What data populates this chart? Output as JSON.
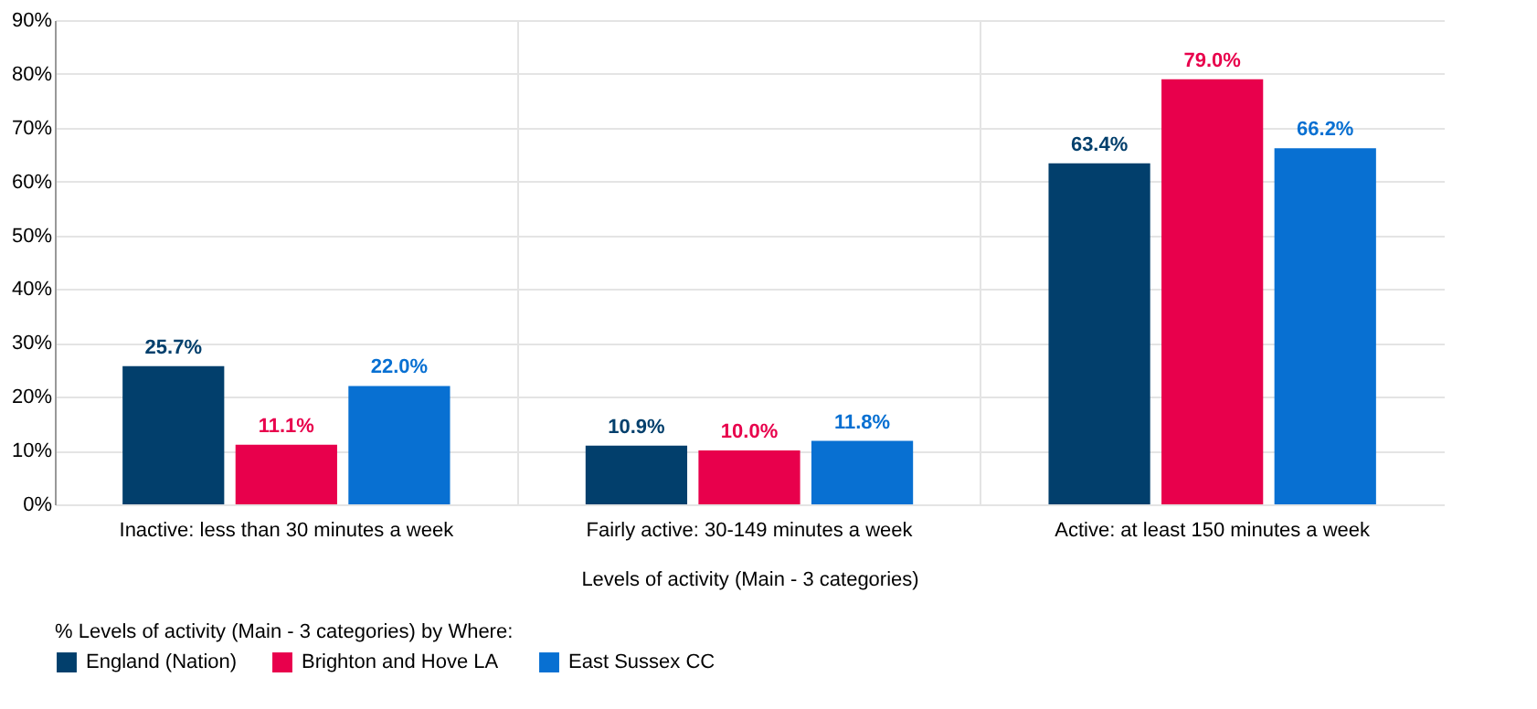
{
  "chart_data": {
    "type": "bar",
    "xlabel": "Levels of activity (Main - 3 categories)",
    "legend_title": "% Levels of activity (Main - 3 categories) by Where:",
    "categories": [
      "Inactive: less than 30 minutes a week",
      "Fairly active: 30-149 minutes a week",
      "Active: at least 150 minutes a week"
    ],
    "series": [
      {
        "name": "England (Nation)",
        "color": "#023f6c",
        "values": [
          25.7,
          10.9,
          63.4
        ],
        "value_labels": [
          "25.7%",
          "10.9%",
          "63.4%"
        ]
      },
      {
        "name": "Brighton and Hove  LA",
        "color": "#e8004c",
        "values": [
          11.1,
          10.0,
          79.0
        ],
        "value_labels": [
          "11.1%",
          "10.0%",
          "79.0%"
        ]
      },
      {
        "name": "East Sussex CC",
        "color": "#0870d2",
        "values": [
          22.0,
          11.8,
          66.2
        ],
        "value_labels": [
          "22.0%",
          "11.8%",
          "66.2%"
        ]
      }
    ],
    "ylim": [
      0,
      90
    ],
    "yticks": [
      {
        "value": 0,
        "label": "0%"
      },
      {
        "value": 10,
        "label": "10%"
      },
      {
        "value": 20,
        "label": "20%"
      },
      {
        "value": 30,
        "label": "30%"
      },
      {
        "value": 40,
        "label": "40%"
      },
      {
        "value": 50,
        "label": "50%"
      },
      {
        "value": 60,
        "label": "60%"
      },
      {
        "value": 70,
        "label": "70%"
      },
      {
        "value": 80,
        "label": "80%"
      },
      {
        "value": 90,
        "label": "90%"
      }
    ],
    "grid": true,
    "legend": "bottom left"
  }
}
